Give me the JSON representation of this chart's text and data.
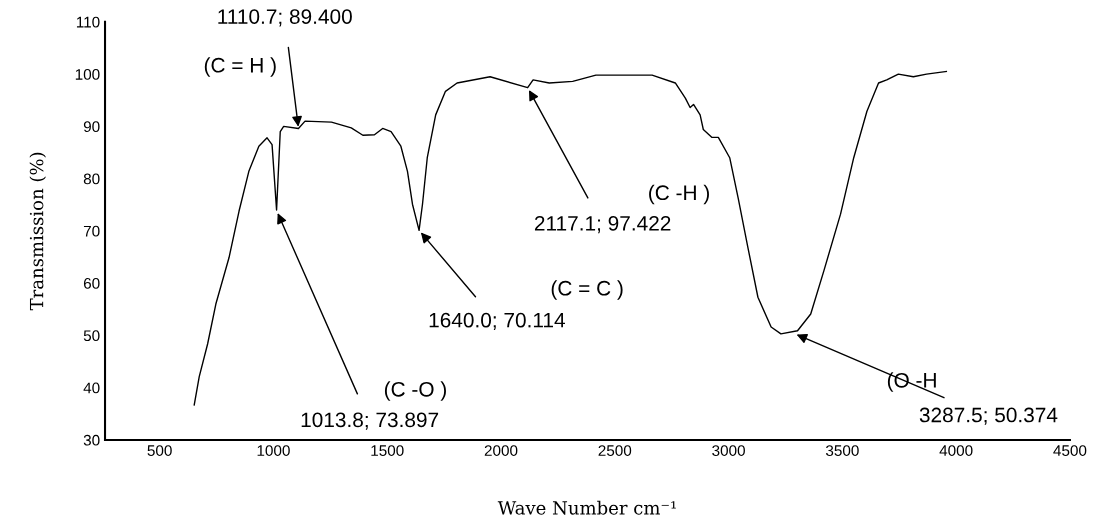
{
  "chart_data": {
    "type": "line",
    "xlabel": "Wave Number cm⁻¹",
    "ylabel": "Transmission (%)",
    "xlim": [
      260,
      4500
    ],
    "xticks": [
      500,
      1000,
      1500,
      2000,
      2500,
      3000,
      3500,
      4000,
      4500
    ],
    "ylim": [
      30,
      110
    ],
    "yticks": [
      30,
      40,
      50,
      60,
      70,
      80,
      90,
      100,
      110
    ],
    "grid": false,
    "legend": false,
    "marker": "none",
    "line_style": "solid",
    "series": [
      {
        "color": "#000000",
        "x": [
          652,
          674,
          711,
          747,
          805,
          849,
          892,
          936,
          972,
          994,
          1013.8,
          1030,
          1045,
          1110,
          1139,
          1255,
          1342,
          1393,
          1444,
          1480,
          1517,
          1560,
          1589,
          1611,
          1640,
          1655,
          1676,
          1713,
          1756,
          1807,
          1952,
          2117.1,
          2141,
          2212,
          2315,
          2417,
          2461,
          2664,
          2766,
          2810,
          2831,
          2846,
          2875,
          2889,
          2926,
          2955,
          3005,
          3042,
          3085,
          3129,
          3187,
          3230,
          3303,
          3361,
          3419,
          3492,
          3550,
          3608,
          3659,
          3695,
          3746,
          3812,
          3870,
          3957
        ],
        "values": [
          36.7,
          42.1,
          48.4,
          56.0,
          64.9,
          73.8,
          81.4,
          86.2,
          87.8,
          86.5,
          74,
          89.0,
          90,
          89.6,
          91,
          90.8,
          89.7,
          88.3,
          88.4,
          89.6,
          89.0,
          86.2,
          81.4,
          75.1,
          70.1,
          75.1,
          84,
          92.2,
          96.7,
          98.3,
          99.5,
          97.4,
          98.9,
          98.3,
          98.6,
          99.8,
          99.8,
          99.8,
          98.3,
          95.4,
          93.6,
          94.2,
          92.2,
          89.4,
          87.9,
          87.9,
          84,
          76.3,
          66.8,
          57.3,
          51.6,
          50.3,
          50.9,
          54.1,
          62.4,
          73.2,
          84.0,
          92.9,
          98.3,
          98.9,
          100,
          99.5,
          100,
          100.5
        ]
      }
    ],
    "annotations": [
      {
        "text": "1110.7; 89.400",
        "x": 1110.7,
        "y": 89.4
      },
      "(C = H )",
      {
        "text": "1013.8; 73.897",
        "x": 1013.8,
        "y": 73.897
      },
      "(C -O )",
      {
        "text": "1640.0; 70.114",
        "x": 1640.0,
        "y": 70.114
      },
      "(C = C )",
      {
        "text": "2117.1; 97.422",
        "x": 2117.1,
        "y": 97.422
      },
      "(C -H )",
      {
        "text": "3287.5; 50.374",
        "x": 3287.5,
        "y": 50.374
      },
      "(O -H"
    ]
  }
}
